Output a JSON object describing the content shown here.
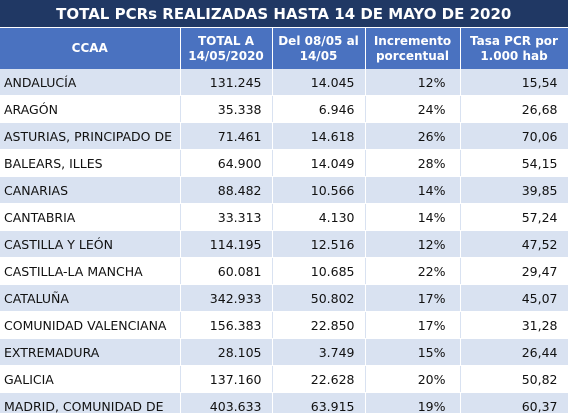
{
  "table": {
    "title": "TOTAL PCRs REALIZADAS HASTA 14 DE MAYO DE 2020",
    "header": [
      "CCAA",
      "TOTAL  A\n14/05/2020",
      "Del 08/05 al\n14/05",
      "Incremento\nporcentual",
      "Tasa PCR por\n1.000 hab"
    ],
    "rows": [
      [
        "ANDALUCÍA",
        "131.245",
        "14.045",
        "12%",
        "15,54"
      ],
      [
        "ARAGÓN",
        "35.338",
        "6.946",
        "24%",
        "26,68"
      ],
      [
        "ASTURIAS, PRINCIPADO DE",
        "71.461",
        "14.618",
        "26%",
        "70,06"
      ],
      [
        "BALEARS, ILLES",
        "64.900",
        "14.049",
        "28%",
        "54,15"
      ],
      [
        "CANARIAS",
        "88.482",
        "10.566",
        "14%",
        "39,85"
      ],
      [
        "CANTABRIA",
        "33.313",
        "4.130",
        "14%",
        "57,24"
      ],
      [
        "CASTILLA Y LEÓN",
        "114.195",
        "12.516",
        "12%",
        "47,52"
      ],
      [
        "CASTILLA-LA MANCHA",
        "60.081",
        "10.685",
        "22%",
        "29,47"
      ],
      [
        "CATALUÑA",
        "342.933",
        "50.802",
        "17%",
        "45,07"
      ],
      [
        "COMUNIDAD VALENCIANA",
        "156.383",
        "22.850",
        "17%",
        "31,28"
      ],
      [
        "EXTREMADURA",
        "28.105",
        "3.749",
        "15%",
        "26,44"
      ],
      [
        "GALICIA",
        "137.160",
        "22.628",
        "20%",
        "50,82"
      ],
      [
        "MADRID, COMUNIDAD DE",
        "403.633",
        "63.915",
        "19%",
        "60,37"
      ]
    ]
  }
}
